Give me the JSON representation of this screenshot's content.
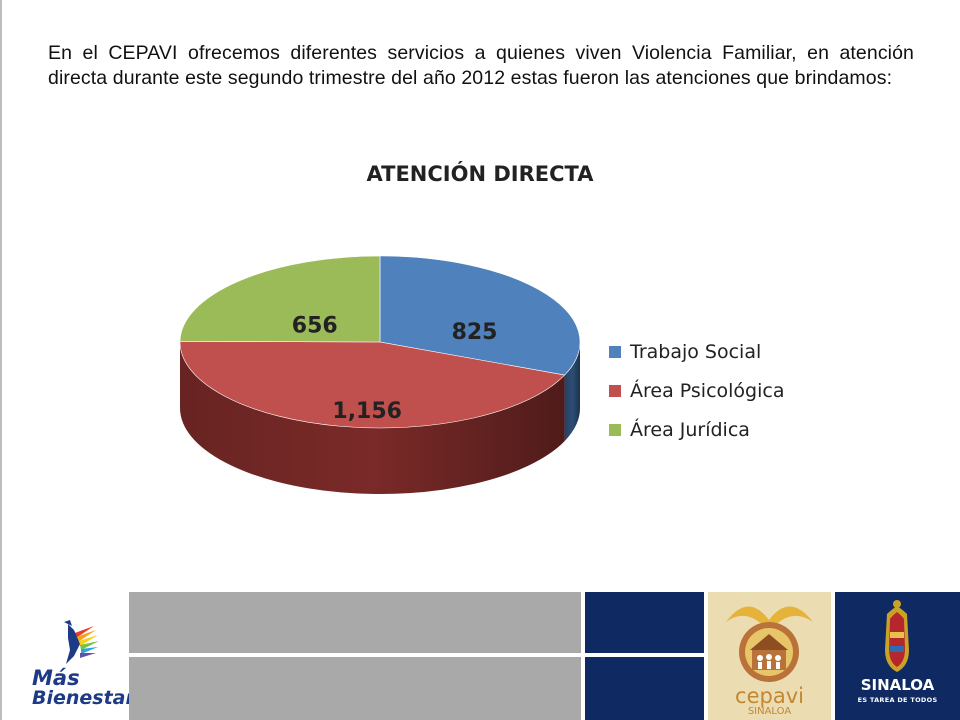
{
  "intro_text": "En el CEPAVI ofrecemos diferentes servicios a quienes viven Violencia Familiar, en atención directa durante este segundo trimestre del año 2012 estas fueron las atenciones que brindamos:",
  "chart_data": {
    "type": "pie",
    "title": "ATENCIÓN DIRECTA",
    "categories": [
      "Trabajo Social",
      "Área Psicológica",
      "Área Jurídica"
    ],
    "values": [
      825,
      1156,
      656
    ],
    "data_labels": [
      "825",
      "1,156",
      "656"
    ],
    "colors": [
      "#4f81bd",
      "#c0504d",
      "#9bbb59"
    ],
    "side_colors": [
      "#2c4d75",
      "#7a2a28",
      "#5e7a2e"
    ],
    "three_d": true,
    "legend_position": "right"
  },
  "footer": {
    "left_logo": {
      "name": "Más Bienestar",
      "line1": "Más",
      "line2": "Bienestar"
    },
    "cepavi_logo": {
      "name": "cepavi",
      "sub": "SINALOA"
    },
    "sinaloa_logo": {
      "name": "SINALOA",
      "tagline": "ES TAREA DE TODOS"
    }
  }
}
